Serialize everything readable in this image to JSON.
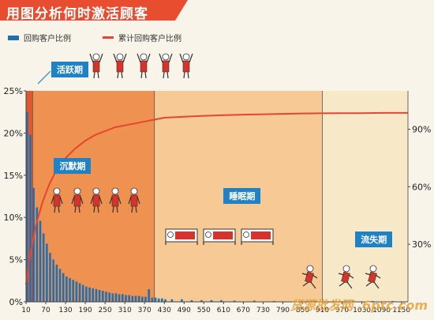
{
  "page": {
    "title": "用图分析何时激活顾客",
    "watermark": "货源批发网 .6ptc.com",
    "colors": {
      "banner": "#e84d2f",
      "bar": "#1f6fb3",
      "line": "#e5462f",
      "active_phase": "#e3572c",
      "silent_phase": "#ef9150",
      "sleep_phase": "#f6c995",
      "lost_phase": "#f7e8c8",
      "label_bg": "#1f82c6"
    },
    "icons": {
      "active": "cheering-people-icon",
      "silent": "standing-people-icon",
      "sleep": "bed-icon",
      "lost": "running-people-icon"
    }
  },
  "chart_data": {
    "type": "bar",
    "title": "用图分析何时激活顾客",
    "xlabel": "",
    "ylabel": "",
    "x_tick_labels": [
      "10",
      "70",
      "130",
      "190",
      "250",
      "310",
      "370",
      "430",
      "490",
      "550",
      "610",
      "670",
      "730",
      "790",
      "850",
      "910",
      "970",
      "1030",
      "1090",
      "1150"
    ],
    "xlim": [
      10,
      1170
    ],
    "ylim": [
      0,
      25
    ],
    "y_tick_labels": [
      "0%",
      "5%",
      "10%",
      "15%",
      "20%",
      "25%"
    ],
    "y2lim": [
      0,
      110
    ],
    "y2_tick_labels": [
      "30%",
      "60%",
      "90%"
    ],
    "y2_ticks": [
      30,
      60,
      90
    ],
    "grid": false,
    "legend_position": "top-left",
    "phases": [
      {
        "label": "活跃期",
        "start": 10,
        "end": 30
      },
      {
        "label": "沉默期",
        "start": 30,
        "end": 400
      },
      {
        "label": "睡眠期",
        "start": 400,
        "end": 910
      },
      {
        "label": "流失期",
        "start": 910,
        "end": 1170
      }
    ],
    "series": [
      {
        "name": "回购客户比例",
        "kind": "bar",
        "x": [
          10,
          20,
          30,
          40,
          50,
          60,
          70,
          80,
          90,
          100,
          110,
          120,
          130,
          140,
          150,
          160,
          170,
          180,
          190,
          200,
          210,
          220,
          230,
          240,
          250,
          260,
          270,
          280,
          290,
          300,
          310,
          320,
          330,
          340,
          350,
          360,
          370,
          380,
          390,
          400,
          410,
          420,
          430,
          450,
          480,
          510,
          540,
          570,
          600,
          640,
          700,
          760,
          820,
          880,
          940,
          1000,
          1060,
          1120
        ],
        "values": [
          22.5,
          19.8,
          13.5,
          11.2,
          9.6,
          8.1,
          6.9,
          5.8,
          5.0,
          4.4,
          3.9,
          3.4,
          3.0,
          2.8,
          2.6,
          2.4,
          2.2,
          2.0,
          1.8,
          1.7,
          1.6,
          1.5,
          1.4,
          1.3,
          1.2,
          1.1,
          1.0,
          1.0,
          0.9,
          0.9,
          0.8,
          0.8,
          0.7,
          0.7,
          0.7,
          0.6,
          0.6,
          1.5,
          0.5,
          0.5,
          0.4,
          0.4,
          0.3,
          0.3,
          0.3,
          0.2,
          0.2,
          0.2,
          0.2,
          0.15,
          0.15,
          0.1,
          0.1,
          0.1,
          0.1,
          0.1,
          0.1,
          0.1
        ]
      },
      {
        "name": "累计回购客户比例",
        "kind": "line",
        "axis": "right",
        "x": [
          10,
          20,
          40,
          60,
          80,
          100,
          130,
          160,
          190,
          220,
          250,
          280,
          310,
          340,
          370,
          400,
          430,
          490,
          550,
          610,
          670,
          730,
          790,
          850,
          910,
          970,
          1030,
          1090,
          1150,
          1170
        ],
        "values": [
          9,
          22,
          40,
          52,
          61,
          68,
          75,
          80,
          84,
          87,
          89,
          91,
          92,
          93,
          94,
          95,
          96,
          96.5,
          97,
          97.3,
          97.6,
          97.8,
          98,
          98.2,
          98.3,
          98.4,
          98.4,
          98.5,
          98.5,
          98.5
        ]
      }
    ]
  }
}
